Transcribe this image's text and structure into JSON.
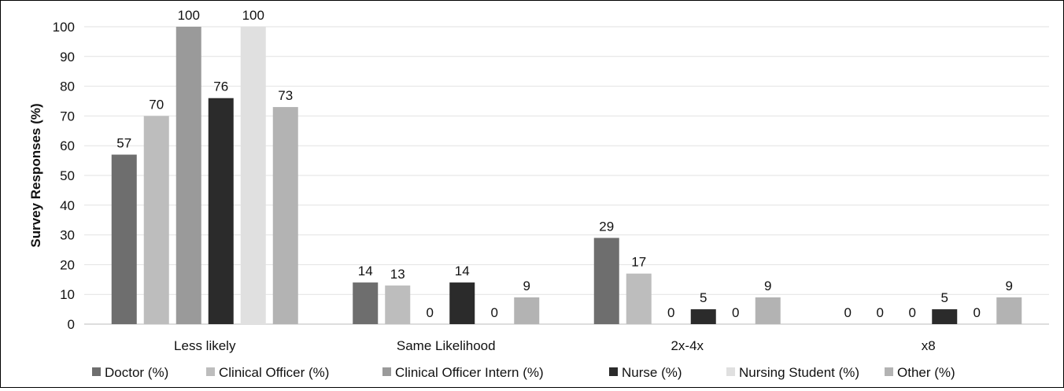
{
  "chart_data": {
    "type": "bar",
    "title": "",
    "xlabel": "",
    "ylabel": "Survey Responses (%)",
    "ylim": [
      0,
      100
    ],
    "yticks": [
      0,
      10,
      20,
      30,
      40,
      50,
      60,
      70,
      80,
      90,
      100
    ],
    "grid": true,
    "legend_position": "bottom",
    "categories": [
      "Less likely",
      "Same Likelihood",
      "2x-4x",
      "x8"
    ],
    "series": [
      {
        "name": "Doctor (%)",
        "color": "#6e6e6e",
        "values": [
          57,
          14,
          29,
          0
        ]
      },
      {
        "name": "Clinical Officer (%)",
        "color": "#bdbdbd",
        "values": [
          70,
          13,
          17,
          0
        ]
      },
      {
        "name": "Clinical Officer Intern (%)",
        "color": "#9a9a9a",
        "values": [
          100,
          0,
          0,
          0
        ]
      },
      {
        "name": "Nurse (%)",
        "color": "#2b2b2b",
        "values": [
          76,
          14,
          5,
          5
        ]
      },
      {
        "name": "Nursing Student (%)",
        "color": "#e0e0e0",
        "values": [
          100,
          0,
          0,
          0
        ]
      },
      {
        "name": "Other (%)",
        "color": "#b3b3b3",
        "values": [
          73,
          9,
          9,
          9
        ]
      }
    ]
  }
}
